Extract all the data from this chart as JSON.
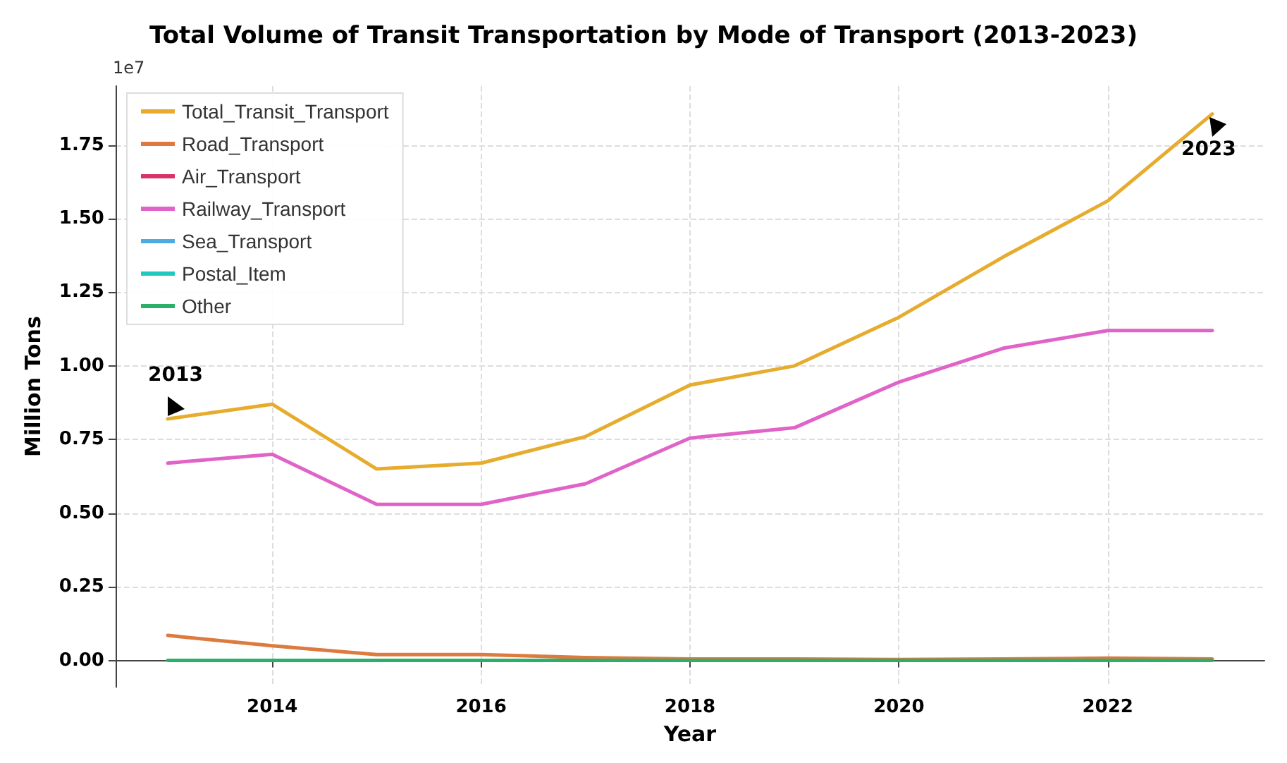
{
  "chart_data": {
    "type": "line",
    "title": "Total Volume of Transit Transportation by Mode of Transport (2013-2023)",
    "xlabel": "Year",
    "ylabel": "Million Tons",
    "x": [
      2013,
      2014,
      2015,
      2016,
      2017,
      2018,
      2019,
      2020,
      2021,
      2022,
      2023
    ],
    "series": [
      {
        "name": "Total_Transit_Transport",
        "color": "#e6ac2e",
        "values": [
          0.82,
          0.87,
          0.65,
          0.67,
          0.76,
          0.935,
          1.0,
          1.165,
          1.37,
          1.56,
          1.855
        ]
      },
      {
        "name": "Road_Transport",
        "color": "#dd7a3f",
        "values": [
          0.085,
          0.05,
          0.02,
          0.02,
          0.01,
          0.005,
          0.005,
          0.003,
          0.005,
          0.008,
          0.005
        ]
      },
      {
        "name": "Air_Transport",
        "color": "#d6336c",
        "values": [
          null,
          null,
          null,
          null,
          null,
          null,
          null,
          null,
          null,
          null,
          null
        ]
      },
      {
        "name": "Railway_Transport",
        "color": "#e063c8",
        "values": [
          0.67,
          0.7,
          0.53,
          0.53,
          0.6,
          0.755,
          0.79,
          0.945,
          1.06,
          1.12,
          1.12
        ]
      },
      {
        "name": "Sea_Transport",
        "color": "#4dabdf",
        "values": [
          null,
          null,
          null,
          null,
          null,
          null,
          null,
          null,
          null,
          null,
          null
        ]
      },
      {
        "name": "Postal_Item",
        "color": "#20c9c0",
        "values": [
          null,
          null,
          null,
          null,
          null,
          null,
          null,
          null,
          null,
          null,
          null
        ]
      },
      {
        "name": "Other",
        "color": "#2ab068",
        "values": [
          0,
          0,
          0,
          0,
          0,
          0,
          0,
          0,
          0,
          0,
          0
        ]
      }
    ],
    "xlim": [
      2012.5,
      2023.5
    ],
    "xticks": [
      2014,
      2016,
      2018,
      2020,
      2022
    ],
    "ylim": [
      -0.09,
      1.95
    ],
    "yticks": [
      {
        "value": 0,
        "label": "0.00"
      },
      0.25,
      {
        "value": 0.5,
        "label": "0.50"
      },
      0.75,
      {
        "value": 1,
        "label": "1.00"
      },
      1.25,
      {
        "value": 1.5,
        "label": "1.50"
      },
      1.75
    ],
    "annotations": [
      "1e7",
      {
        "text": "2013",
        "x": 2013,
        "y": 0.82
      },
      {
        "text": "2023",
        "x": 2023,
        "y": 1.855
      }
    ],
    "grid": true,
    "legend": "top left",
    "marker": "none",
    "line_style": "solid"
  }
}
